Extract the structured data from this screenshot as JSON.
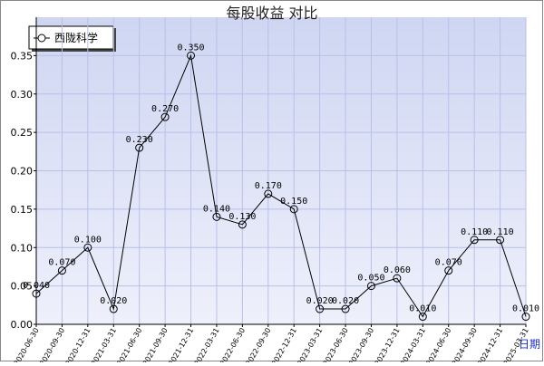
{
  "chart_data": {
    "type": "line",
    "title": "每股收益 对比",
    "x_label": "日期",
    "categories": [
      "2020-06-30",
      "2020-09-30",
      "2020-12-31",
      "2021-03-31",
      "2021-06-30",
      "2021-09-30",
      "2021-12-31",
      "2022-03-31",
      "2022-06-30",
      "2022-09-30",
      "2022-12-31",
      "2023-03-31",
      "2023-06-30",
      "2023-09-30",
      "2023-12-31",
      "2024-03-31",
      "2024-06-30",
      "2024-09-30",
      "2024-12-31",
      "2025-03-31"
    ],
    "series": [
      {
        "name": "西陇科学",
        "color": "#000000",
        "values": [
          0.04,
          0.07,
          0.1,
          0.02,
          0.23,
          0.27,
          0.35,
          0.14,
          0.13,
          0.17,
          0.15,
          0.02,
          0.02,
          0.05,
          0.06,
          0.01,
          0.07,
          0.11,
          0.11,
          0.01
        ],
        "value_labels": [
          "0.040",
          "0.070",
          "0.100",
          "0.020",
          "0.230",
          "0.270",
          "0.350",
          "0.140",
          "0.130",
          "0.170",
          "0.150",
          "0.020",
          "0.020",
          "0.050",
          "0.060",
          "0.010",
          "0.070",
          "0.110",
          "0.110",
          "0.010"
        ]
      }
    ],
    "ylim": [
      0,
      0.4
    ],
    "yticks": [
      {
        "value": 0,
        "label": "0.00"
      },
      {
        "value": 0.05,
        "label": "0.05"
      },
      {
        "value": 0.1,
        "label": "0.10"
      },
      {
        "value": 0.15,
        "label": "0.15"
      },
      {
        "value": 0.2,
        "label": "0.20"
      },
      {
        "value": 0.25,
        "label": "0.25"
      },
      {
        "value": 0.3,
        "label": "0.30"
      },
      {
        "value": 0.35,
        "label": "0.35"
      }
    ],
    "grid": true,
    "legend": "top-left"
  }
}
